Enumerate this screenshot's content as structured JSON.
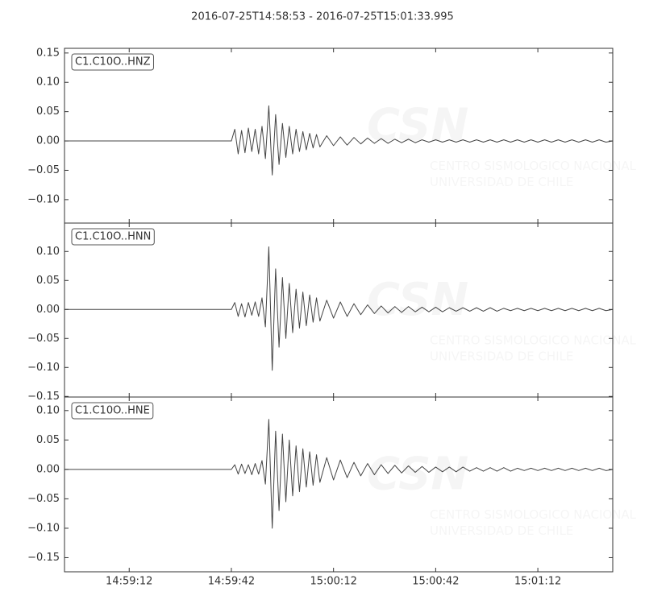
{
  "title": "2016-07-25T14:58:53  -  2016-07-25T15:01:33.995",
  "watermark": {
    "logo": "CSN",
    "lines": [
      "CENTRO SISMOLOGICO NACIONAL",
      "UNIVERSIDAD DE CHILE"
    ]
  },
  "chart_data": [
    {
      "type": "line",
      "label": "C1.C10O..HNZ",
      "color": "#444444",
      "xlim": [
        0,
        160.995
      ],
      "ylim": [
        -0.14,
        0.158
      ],
      "yticks": [
        {
          "value": -0.1,
          "label": "−0.10"
        },
        {
          "value": -0.05,
          "label": "−0.05"
        },
        {
          "value": 0,
          "label": "0.00"
        },
        {
          "value": 0.05,
          "label": "0.05"
        },
        {
          "value": 0.1,
          "label": "0.10"
        },
        {
          "value": 0.15,
          "label": "0.15"
        }
      ],
      "x": [
        0,
        49,
        50,
        51,
        52,
        53,
        54,
        55,
        56,
        57,
        58,
        59,
        60,
        61,
        62,
        63,
        64,
        65,
        66,
        67,
        68,
        69,
        70,
        71,
        72,
        73,
        74,
        75,
        77,
        79,
        81,
        83,
        85,
        87,
        89,
        91,
        93,
        95,
        97,
        99,
        101,
        103,
        105,
        107,
        109,
        111,
        113,
        115,
        117,
        119,
        121,
        123,
        125,
        127,
        129,
        131,
        133,
        135,
        137,
        139,
        141,
        143,
        145,
        147,
        149,
        151,
        153,
        155,
        157,
        159,
        160.995
      ],
      "values": [
        0,
        0,
        0.02,
        -0.022,
        0.018,
        -0.02,
        0.022,
        -0.018,
        0.02,
        -0.022,
        0.025,
        -0.03,
        0.06,
        -0.058,
        0.045,
        -0.04,
        0.03,
        -0.028,
        0.025,
        -0.022,
        0.02,
        -0.018,
        0.016,
        -0.015,
        0.013,
        -0.012,
        0.011,
        -0.01,
        0.009,
        -0.008,
        0.007,
        -0.007,
        0.006,
        -0.005,
        0.005,
        -0.004,
        0.004,
        -0.004,
        0.003,
        -0.003,
        0.003,
        -0.003,
        0.002,
        -0.002,
        0.002,
        -0.002,
        0.002,
        -0.002,
        0.002,
        -0.002,
        0.002,
        -0.002,
        0.002,
        -0.002,
        0.002,
        -0.002,
        0.002,
        -0.002,
        0.002,
        -0.002,
        0.002,
        -0.002,
        0.002,
        -0.002,
        0.002,
        -0.002,
        0.002,
        -0.002,
        0.002,
        -0.002,
        0
      ]
    },
    {
      "type": "line",
      "label": "C1.C10O..HNN",
      "color": "#444444",
      "xlim": [
        0,
        160.995
      ],
      "ylim": [
        -0.151,
        0.149
      ],
      "yticks": [
        {
          "value": -0.15,
          "label": "−0.15"
        },
        {
          "value": -0.1,
          "label": "−0.10"
        },
        {
          "value": -0.05,
          "label": "−0.05"
        },
        {
          "value": 0,
          "label": "0.00"
        },
        {
          "value": 0.05,
          "label": "0.05"
        },
        {
          "value": 0.1,
          "label": "0.10"
        }
      ],
      "x": [
        0,
        49,
        50,
        51,
        52,
        53,
        54,
        55,
        56,
        57,
        58,
        59,
        60,
        61,
        62,
        63,
        64,
        65,
        66,
        67,
        68,
        69,
        70,
        71,
        72,
        73,
        74,
        75,
        77,
        79,
        81,
        83,
        85,
        87,
        89,
        91,
        93,
        95,
        97,
        99,
        101,
        103,
        105,
        107,
        109,
        111,
        113,
        115,
        117,
        119,
        121,
        123,
        125,
        127,
        129,
        131,
        133,
        135,
        137,
        139,
        141,
        143,
        145,
        147,
        149,
        151,
        153,
        155,
        157,
        159,
        160.995
      ],
      "values": [
        0,
        0,
        0.012,
        -0.012,
        0.01,
        -0.013,
        0.012,
        -0.01,
        0.013,
        -0.012,
        0.02,
        -0.03,
        0.108,
        -0.105,
        0.07,
        -0.065,
        0.055,
        -0.05,
        0.045,
        -0.04,
        0.035,
        -0.032,
        0.03,
        -0.028,
        0.025,
        -0.022,
        0.02,
        -0.02,
        0.016,
        -0.015,
        0.013,
        -0.012,
        0.01,
        -0.009,
        0.008,
        -0.007,
        0.006,
        -0.006,
        0.005,
        -0.005,
        0.005,
        -0.004,
        0.004,
        -0.004,
        0.004,
        -0.004,
        0.003,
        -0.003,
        0.003,
        -0.003,
        0.003,
        -0.003,
        0.003,
        -0.003,
        0.002,
        -0.002,
        0.002,
        -0.002,
        0.002,
        -0.002,
        0.002,
        -0.002,
        0.002,
        -0.002,
        0.002,
        -0.002,
        0.002,
        -0.002,
        0.002,
        -0.002,
        0
      ]
    },
    {
      "type": "line",
      "label": "C1.C10O..HNE",
      "color": "#444444",
      "xlim": [
        0,
        160.995
      ],
      "ylim": [
        -0.174,
        0.123
      ],
      "yticks": [
        {
          "value": -0.15,
          "label": "−0.15"
        },
        {
          "value": -0.1,
          "label": "−0.10"
        },
        {
          "value": -0.05,
          "label": "−0.05"
        },
        {
          "value": 0,
          "label": "0.00"
        },
        {
          "value": 0.05,
          "label": "0.05"
        },
        {
          "value": 0.1,
          "label": "0.10"
        }
      ],
      "xticks": [
        {
          "value": 19,
          "label": "14:59:12"
        },
        {
          "value": 49,
          "label": "14:59:42"
        },
        {
          "value": 79,
          "label": "15:00:12"
        },
        {
          "value": 109,
          "label": "15:00:42"
        },
        {
          "value": 139,
          "label": "15:01:12"
        }
      ],
      "x": [
        0,
        49,
        50,
        51,
        52,
        53,
        54,
        55,
        56,
        57,
        58,
        59,
        60,
        61,
        62,
        63,
        64,
        65,
        66,
        67,
        68,
        69,
        70,
        71,
        72,
        73,
        74,
        75,
        77,
        79,
        81,
        83,
        85,
        87,
        89,
        91,
        93,
        95,
        97,
        99,
        101,
        103,
        105,
        107,
        109,
        111,
        113,
        115,
        117,
        119,
        121,
        123,
        125,
        127,
        129,
        131,
        133,
        135,
        137,
        139,
        141,
        143,
        145,
        147,
        149,
        151,
        153,
        155,
        157,
        159,
        160.995
      ],
      "values": [
        0,
        0,
        0.008,
        -0.008,
        0.009,
        -0.007,
        0.008,
        -0.009,
        0.01,
        -0.008,
        0.015,
        -0.025,
        0.085,
        -0.1,
        0.065,
        -0.07,
        0.06,
        -0.055,
        0.05,
        -0.045,
        0.04,
        -0.038,
        0.035,
        -0.03,
        0.03,
        -0.027,
        0.025,
        -0.022,
        0.02,
        -0.018,
        0.016,
        -0.014,
        0.012,
        -0.011,
        0.01,
        -0.009,
        0.008,
        -0.007,
        0.007,
        -0.006,
        0.006,
        -0.005,
        0.005,
        -0.005,
        0.004,
        -0.004,
        0.004,
        -0.004,
        0.004,
        -0.003,
        0.003,
        -0.003,
        0.003,
        -0.003,
        0.003,
        -0.003,
        0.002,
        -0.002,
        0.002,
        -0.002,
        0.002,
        -0.002,
        0.002,
        -0.002,
        0.002,
        -0.002,
        0.002,
        -0.002,
        0.002,
        -0.002,
        0
      ]
    }
  ]
}
